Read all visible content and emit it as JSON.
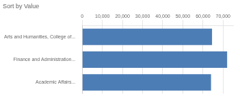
{
  "chart_data": {
    "type": "bar",
    "orientation": "horizontal",
    "title": "Sort by Value",
    "categories": [
      "Academic Affairs...",
      "Finance and Administration...",
      "Arts and Humanities, College of..."
    ],
    "values": [
      64000,
      72000,
      64500
    ],
    "color": "#4d7db5",
    "xlim": [
      0,
      75000
    ],
    "xticks": [
      0,
      {
        "value": 10000,
        "label": "10,000"
      },
      {
        "value": 20000,
        "label": "20,000"
      },
      {
        "value": 30000,
        "label": "30,000"
      },
      {
        "value": 40000,
        "label": "40,000"
      },
      {
        "value": 50000,
        "label": "50,000"
      },
      {
        "value": 60000,
        "label": "60,000"
      },
      {
        "value": 70000,
        "label": "70,000"
      }
    ],
    "grid": true
  }
}
